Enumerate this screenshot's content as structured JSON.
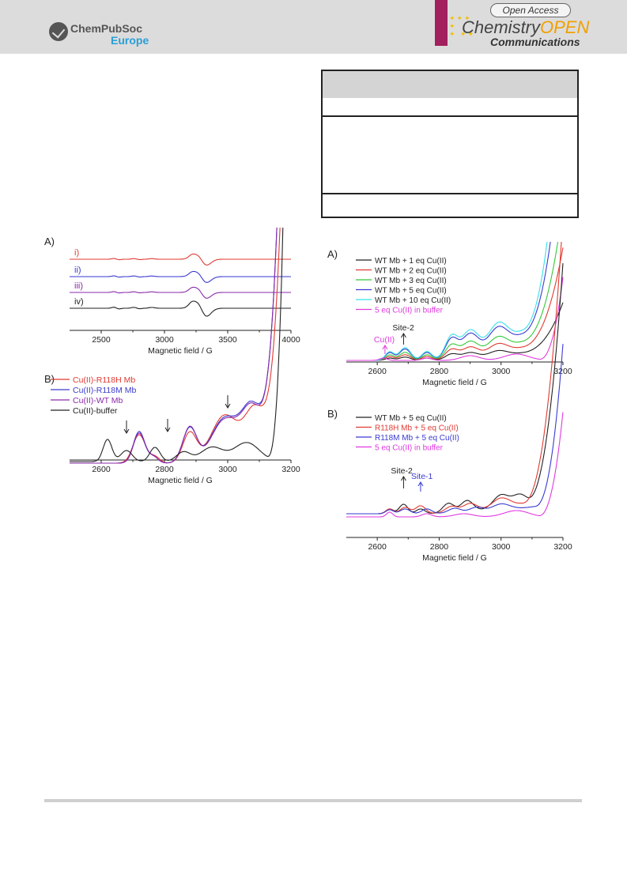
{
  "header": {
    "publisher_name": "ChemPubSoc",
    "publisher_sub": "Europe",
    "oa_badge": "Open Access",
    "journal_main": "Chemistry",
    "journal_accent": "OPEN",
    "journal_sub": "Communications"
  },
  "colors": {
    "header_bg": "#dcdcdc",
    "journal_bar": "#a3205f",
    "black": "#222222",
    "red": "#e03a32",
    "blue": "#3a3ad0",
    "purple": "#8a2aa8",
    "green": "#36c83a",
    "cyan": "#38e0ea",
    "magenta": "#e03ae0"
  },
  "chart_data": [
    {
      "panel": "A)",
      "type": "line",
      "xlabel": "Magnetic field / G",
      "xlim": [
        2250,
        4000
      ],
      "xticks": [
        2500,
        3000,
        3500,
        4000
      ],
      "series": [
        {
          "name": "i)",
          "color": "red"
        },
        {
          "name": "ii)",
          "color": "blue"
        },
        {
          "name": "iii)",
          "color": "purple"
        },
        {
          "name": "iv)",
          "color": "black"
        }
      ]
    },
    {
      "panel": "B)",
      "type": "line",
      "xlabel": "Magnetic field / G",
      "xlim": [
        2500,
        3200
      ],
      "xticks": [
        2600,
        2800,
        3000,
        3200
      ],
      "legend_position": "top-left",
      "series": [
        {
          "name": "Cu(II)-R118H Mb",
          "color": "red"
        },
        {
          "name": "Cu(II)-R118M Mb",
          "color": "blue"
        },
        {
          "name": "Cu(II)-WT Mb",
          "color": "purple"
        },
        {
          "name": "Cu(II)-buffer",
          "color": "black"
        }
      ],
      "arrows_at": [
        2680,
        2810,
        3000
      ]
    },
    {
      "panel": "A)",
      "type": "line",
      "xlabel": "Magnetic field / G",
      "xlim": [
        2500,
        3200
      ],
      "xticks": [
        2600,
        2800,
        3000,
        3200
      ],
      "legend_position": "top-left",
      "series": [
        {
          "name": "WT Mb + 1 eq Cu(II)",
          "color": "black"
        },
        {
          "name": "WT Mb + 2 eq Cu(II)",
          "color": "red"
        },
        {
          "name": "WT Mb + 3 eq Cu(II)",
          "color": "green"
        },
        {
          "name": "WT Mb + 5 eq Cu(II)",
          "color": "blue"
        },
        {
          "name": "WT Mb + 10 eq Cu(II)",
          "color": "cyan"
        },
        {
          "name": "5 eq Cu(II) in buffer",
          "color": "magenta"
        }
      ],
      "annotations": [
        {
          "text": "Site-2",
          "x": 2685,
          "color": "black"
        },
        {
          "text": "Cu(II)",
          "x": 2625,
          "color": "magenta"
        }
      ]
    },
    {
      "panel": "B)",
      "type": "line",
      "xlabel": "Magnetic field / G",
      "xlim": [
        2500,
        3200
      ],
      "xticks": [
        2600,
        2800,
        3000,
        3200
      ],
      "legend_position": "top-left",
      "series": [
        {
          "name": "WT Mb + 5 eq Cu(II)",
          "color": "black"
        },
        {
          "name": "R118H Mb + 5 eq Cu(II)",
          "color": "red"
        },
        {
          "name": "R118M Mb + 5 eq Cu(II)",
          "color": "blue"
        },
        {
          "name": "5 eq Cu(II) in buffer",
          "color": "magenta"
        }
      ],
      "annotations": [
        {
          "text": "Site-2",
          "x": 2685,
          "color": "black"
        },
        {
          "text": "Site-1",
          "x": 2740,
          "color": "blue"
        }
      ]
    }
  ]
}
